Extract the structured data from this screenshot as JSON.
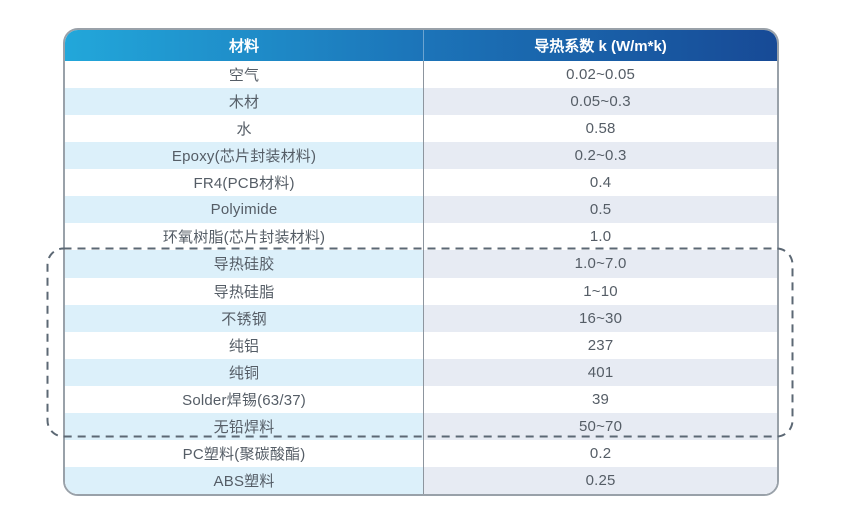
{
  "chart_data": {
    "type": "table",
    "columns": [
      "材料",
      "导热系数 k (W/m*k)"
    ],
    "rows": [
      [
        "空气",
        "0.02~0.05"
      ],
      [
        "木材",
        "0.05~0.3"
      ],
      [
        "水",
        "0.58"
      ],
      [
        "Epoxy(芯片封装材料)",
        "0.2~0.3"
      ],
      [
        "FR4(PCB材料)",
        "0.4"
      ],
      [
        "Polyimide",
        "0.5"
      ],
      [
        "环氧树脂(芯片封装材料)",
        "1.0"
      ],
      [
        "导热硅胶",
        "1.0~7.0"
      ],
      [
        "导热硅脂",
        "1~10"
      ],
      [
        "不锈钢",
        "16~30"
      ],
      [
        "纯铝",
        "237"
      ],
      [
        "纯铜",
        "401"
      ],
      [
        "Solder焊锡(63/37)",
        "39"
      ],
      [
        "无铅焊料",
        "50~70"
      ],
      [
        "PC塑料(聚碳酸酯)",
        "0.2"
      ],
      [
        "ABS塑料",
        "0.25"
      ]
    ],
    "highlight": {
      "style": "dashed-outline",
      "start_index": 7,
      "end_index": 13,
      "materials": [
        "导热硅胶",
        "导热硅脂",
        "不锈钢",
        "纯铝",
        "纯铜",
        "Solder焊锡(63/37)",
        "无铅焊料"
      ]
    }
  },
  "header": {
    "material_label": "材料",
    "value_label": "导热系数 k (W/m*k)"
  },
  "colors": {
    "header_gradient_start": "#22a7da",
    "header_gradient_end": "#174a96",
    "row_tint_material": "#dcf0fa",
    "row_tint_value": "#e7ebf3",
    "table_border": "#99a1a9",
    "column_divider": "#8d959e",
    "dashed_outline": "#5c6874",
    "body_text": "#555d66",
    "header_text": "#ffffff"
  }
}
